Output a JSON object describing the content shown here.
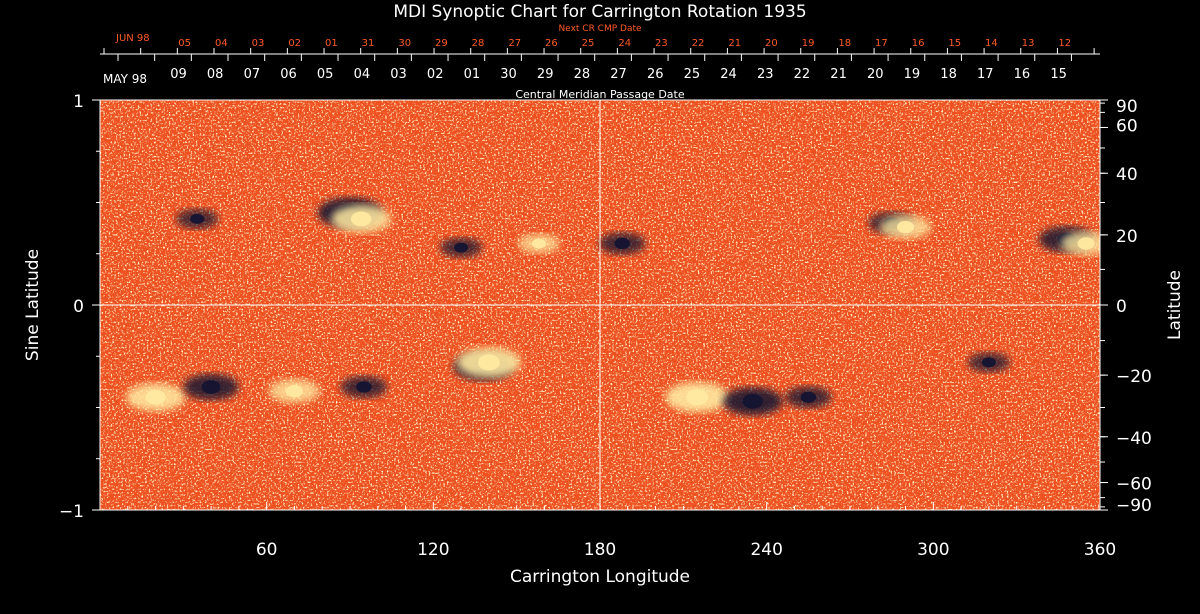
{
  "chart_data": {
    "type": "heatmap",
    "title": "MDI Synoptic Chart for Carrington Rotation 1935",
    "xlabel": "Carrington Longitude",
    "ylabel_left": "Sine Latitude",
    "ylabel_right": "Latitude",
    "xlim": [
      0,
      360
    ],
    "ylim": [
      -1,
      1
    ],
    "x_ticks": [
      60,
      120,
      180,
      240,
      300,
      360
    ],
    "y_ticks_left": [
      {
        "value": 1,
        "label": "1"
      },
      {
        "value": 0,
        "label": "0"
      },
      {
        "value": -1,
        "label": "−1"
      }
    ],
    "y_ticks_right": [
      90,
      60,
      40,
      20,
      0,
      -20,
      -40,
      -60,
      -90
    ],
    "center_lines": {
      "longitude": 180,
      "sine_latitude": 0
    },
    "top_axis_next": {
      "title": "Next CR CMP Date",
      "month_label": "JUN 98",
      "dates": [
        "05",
        "04",
        "03",
        "02",
        "01",
        "31",
        "30",
        "29",
        "28",
        "27",
        "26",
        "25",
        "24",
        "23",
        "22",
        "21",
        "20",
        "19",
        "18",
        "17",
        "16",
        "15",
        "14",
        "13",
        "12"
      ]
    },
    "top_axis_main": {
      "title": "Central Meridian Passage Date",
      "month_label": "MAY 98",
      "dates": [
        "09",
        "08",
        "07",
        "06",
        "05",
        "04",
        "03",
        "02",
        "01",
        "30",
        "29",
        "28",
        "27",
        "26",
        "25",
        "24",
        "23",
        "22",
        "21",
        "20",
        "19",
        "18",
        "17",
        "16",
        "15"
      ]
    },
    "colors": {
      "background_field": "#f0501e",
      "positive_polarity": "#ffe9a0",
      "negative_polarity": "#141432",
      "axis": "#ffffff",
      "next_axis": "#ff5a28"
    },
    "features": [
      {
        "lon": 90,
        "sinlat": 0.45,
        "polarity": "negative",
        "strength": 1.0
      },
      {
        "lon": 94,
        "sinlat": 0.42,
        "polarity": "positive",
        "strength": 0.9
      },
      {
        "lon": 138,
        "sinlat": -0.3,
        "polarity": "negative",
        "strength": 0.9
      },
      {
        "lon": 140,
        "sinlat": -0.28,
        "polarity": "positive",
        "strength": 1.0
      },
      {
        "lon": 20,
        "sinlat": -0.45,
        "polarity": "positive",
        "strength": 0.9
      },
      {
        "lon": 40,
        "sinlat": -0.4,
        "polarity": "negative",
        "strength": 0.8
      },
      {
        "lon": 70,
        "sinlat": -0.42,
        "polarity": "positive",
        "strength": 0.7
      },
      {
        "lon": 95,
        "sinlat": -0.4,
        "polarity": "negative",
        "strength": 0.6
      },
      {
        "lon": 215,
        "sinlat": -0.45,
        "polarity": "positive",
        "strength": 1.0
      },
      {
        "lon": 235,
        "sinlat": -0.47,
        "polarity": "negative",
        "strength": 0.9
      },
      {
        "lon": 255,
        "sinlat": -0.45,
        "polarity": "negative",
        "strength": 0.6
      },
      {
        "lon": 285,
        "sinlat": 0.4,
        "polarity": "negative",
        "strength": 0.6
      },
      {
        "lon": 290,
        "sinlat": 0.38,
        "polarity": "positive",
        "strength": 0.7
      },
      {
        "lon": 348,
        "sinlat": 0.32,
        "polarity": "negative",
        "strength": 0.8
      },
      {
        "lon": 355,
        "sinlat": 0.3,
        "polarity": "positive",
        "strength": 0.7
      },
      {
        "lon": 188,
        "sinlat": 0.3,
        "polarity": "negative",
        "strength": 0.6
      },
      {
        "lon": 130,
        "sinlat": 0.28,
        "polarity": "negative",
        "strength": 0.5
      },
      {
        "lon": 158,
        "sinlat": 0.3,
        "polarity": "positive",
        "strength": 0.5
      },
      {
        "lon": 320,
        "sinlat": -0.28,
        "polarity": "negative",
        "strength": 0.5
      },
      {
        "lon": 35,
        "sinlat": 0.42,
        "polarity": "negative",
        "strength": 0.5
      }
    ]
  }
}
